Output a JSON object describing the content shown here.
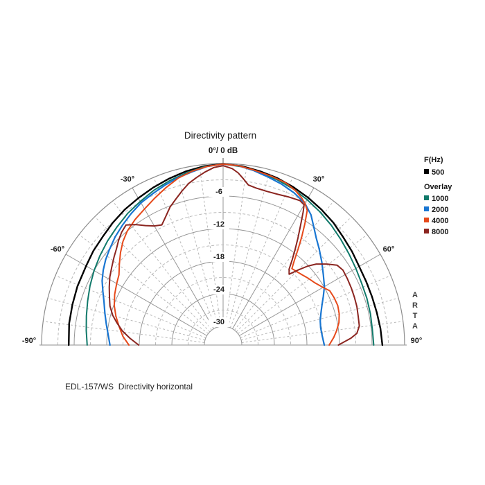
{
  "title": "Directivity pattern",
  "apex_label": "0°/ 0 dB",
  "watermark": "ARTA",
  "caption": "EDL-157/WS  Directivity horizontal",
  "legend": {
    "primary_header": "F(Hz)",
    "primary": [
      {
        "label": "500",
        "color": "#000000"
      }
    ],
    "overlay_header": "Overlay",
    "overlay": [
      {
        "label": "1000",
        "color": "#10796a"
      },
      {
        "label": "2000",
        "color": "#1976d2"
      },
      {
        "label": "4000",
        "color": "#e6491a"
      },
      {
        "label": "8000",
        "color": "#8b2520"
      }
    ]
  },
  "axis": {
    "angle_labels": [
      {
        "text": "-90°"
      },
      {
        "text": "-60°"
      },
      {
        "text": "-30°"
      },
      {
        "text": "30°"
      },
      {
        "text": "60°"
      },
      {
        "text": "90°"
      }
    ],
    "db_labels": [
      {
        "text": "-6"
      },
      {
        "text": "-12"
      },
      {
        "text": "-18"
      },
      {
        "text": "-24"
      },
      {
        "text": "-30"
      }
    ],
    "grid_solid_color": "#969696",
    "grid_dashed_color": "#b9b9b9",
    "outer_circle_color": "#8c8c8c",
    "baseline_color": "#a3a3a3"
  },
  "chart_data": {
    "type": "polar-directivity",
    "title": "Directivity pattern",
    "angle_range_deg": [
      -90,
      90
    ],
    "db_range": [
      0,
      -30
    ],
    "db_grid_solid_step": 6,
    "db_grid_dashed_step": 6,
    "angle_grid_solid_step_deg": 30,
    "angle_grid_dashed_step_deg": 7.5,
    "legend_position": "right",
    "series": [
      {
        "name": "500",
        "color": "#000000",
        "width": 2.4,
        "points": [
          [
            -90,
            -5.0
          ],
          [
            -82,
            -4.8
          ],
          [
            -75,
            -4.7
          ],
          [
            -68,
            -4.5
          ],
          [
            -60,
            -4.3
          ],
          [
            -54,
            -3.9
          ],
          [
            -48,
            -3.6
          ],
          [
            -42,
            -3.1
          ],
          [
            -36,
            -2.6
          ],
          [
            -30,
            -2.2
          ],
          [
            -24,
            -1.7
          ],
          [
            -18,
            -1.2
          ],
          [
            -12,
            -0.7
          ],
          [
            -6,
            -0.3
          ],
          [
            0,
            -0.05
          ],
          [
            6,
            -0.3
          ],
          [
            12,
            -0.7
          ],
          [
            18,
            -1.1
          ],
          [
            24,
            -1.6
          ],
          [
            30,
            -2.1
          ],
          [
            36,
            -2.6
          ],
          [
            42,
            -3.1
          ],
          [
            48,
            -3.7
          ],
          [
            54,
            -4.1
          ],
          [
            60,
            -4.5
          ],
          [
            66,
            -4.6
          ],
          [
            72,
            -4.6
          ],
          [
            78,
            -4.5
          ],
          [
            84,
            -4.3
          ],
          [
            90,
            -4.1
          ]
        ]
      },
      {
        "name": "1000",
        "color": "#10796a",
        "width": 2.0,
        "points": [
          [
            -90,
            -8.4
          ],
          [
            -84,
            -8.1
          ],
          [
            -78,
            -7.7
          ],
          [
            -72,
            -7.2
          ],
          [
            -66,
            -6.6
          ],
          [
            -60,
            -6.0
          ],
          [
            -54,
            -5.4
          ],
          [
            -48,
            -4.8
          ],
          [
            -42,
            -4.2
          ],
          [
            -36,
            -3.5
          ],
          [
            -30,
            -2.9
          ],
          [
            -24,
            -2.2
          ],
          [
            -18,
            -1.6
          ],
          [
            -12,
            -1.0
          ],
          [
            -6,
            -0.4
          ],
          [
            0,
            -0.1
          ],
          [
            6,
            -0.4
          ],
          [
            12,
            -0.9
          ],
          [
            18,
            -1.4
          ],
          [
            24,
            -1.9
          ],
          [
            30,
            -2.5
          ],
          [
            36,
            -3.1
          ],
          [
            42,
            -3.7
          ],
          [
            48,
            -4.3
          ],
          [
            54,
            -4.8
          ],
          [
            60,
            -5.2
          ],
          [
            66,
            -5.5
          ],
          [
            72,
            -5.6
          ],
          [
            78,
            -5.7
          ],
          [
            84,
            -5.8
          ],
          [
            90,
            -5.7
          ]
        ]
      },
      {
        "name": "2000",
        "color": "#1976d2",
        "width": 2.2,
        "points": [
          [
            -90,
            -12.6
          ],
          [
            -85,
            -12.2
          ],
          [
            -80,
            -11.6
          ],
          [
            -75,
            -10.9
          ],
          [
            -70,
            -10.1
          ],
          [
            -66,
            -9.2
          ],
          [
            -62,
            -8.2
          ],
          [
            -58,
            -7.4
          ],
          [
            -54,
            -6.7
          ],
          [
            -50,
            -6.1
          ],
          [
            -45,
            -5.3
          ],
          [
            -40,
            -4.6
          ],
          [
            -35,
            -3.9
          ],
          [
            -30,
            -3.2
          ],
          [
            -25,
            -2.7
          ],
          [
            -20,
            -2.1
          ],
          [
            -15,
            -1.5
          ],
          [
            -10,
            -1.0
          ],
          [
            -5,
            -0.4
          ],
          [
            0,
            -0.1
          ],
          [
            5,
            -0.3
          ],
          [
            10,
            -0.8
          ],
          [
            15,
            -1.4
          ],
          [
            20,
            -1.9
          ],
          [
            25,
            -2.5
          ],
          [
            30,
            -3.3
          ],
          [
            34,
            -4.5
          ],
          [
            38,
            -6.2
          ],
          [
            41,
            -7.3
          ],
          [
            45,
            -8.4
          ],
          [
            50,
            -9.7
          ],
          [
            55,
            -10.9
          ],
          [
            60,
            -11.9
          ],
          [
            64,
            -12.9
          ],
          [
            68,
            -13.8
          ],
          [
            72,
            -14.5
          ],
          [
            76,
            -15.0
          ],
          [
            80,
            -15.2
          ],
          [
            85,
            -15.1
          ],
          [
            90,
            -14.8
          ]
        ]
      },
      {
        "name": "4000",
        "color": "#e6491a",
        "width": 2.0,
        "points": [
          [
            -90,
            -16.1
          ],
          [
            -85,
            -14.9
          ],
          [
            -80,
            -14.0
          ],
          [
            -75,
            -13.0
          ],
          [
            -70,
            -12.1
          ],
          [
            -65,
            -11.4
          ],
          [
            -60,
            -10.8
          ],
          [
            -56,
            -10.3
          ],
          [
            -52,
            -9.2
          ],
          [
            -48,
            -8.0
          ],
          [
            -44,
            -6.9
          ],
          [
            -40,
            -6.0
          ],
          [
            -35,
            -5.2
          ],
          [
            -30,
            -4.5
          ],
          [
            -25,
            -3.6
          ],
          [
            -20,
            -2.6
          ],
          [
            -15,
            -1.6
          ],
          [
            -10,
            -0.9
          ],
          [
            -5,
            -0.4
          ],
          [
            0,
            -0.1
          ],
          [
            5,
            -0.3
          ],
          [
            10,
            -0.7
          ],
          [
            16,
            -1.1
          ],
          [
            21,
            -1.4
          ],
          [
            25,
            -2.0
          ],
          [
            28,
            -2.7
          ],
          [
            30,
            -3.3
          ],
          [
            32,
            -4.2
          ],
          [
            34,
            -6.5
          ],
          [
            36,
            -8.8
          ],
          [
            38,
            -11.0
          ],
          [
            40,
            -13.0
          ],
          [
            42,
            -14.5
          ],
          [
            45,
            -14.3
          ],
          [
            48,
            -14.0
          ],
          [
            52,
            -13.5
          ],
          [
            56,
            -13.0
          ],
          [
            60,
            -12.2
          ],
          [
            63,
            -11.4
          ],
          [
            67,
            -11.2
          ],
          [
            71,
            -11.1
          ],
          [
            75,
            -11.3
          ],
          [
            79,
            -11.7
          ],
          [
            83,
            -12.4
          ],
          [
            86,
            -13.0
          ],
          [
            90,
            -13.9
          ]
        ]
      },
      {
        "name": "8000",
        "color": "#8b2520",
        "width": 2.0,
        "points": [
          [
            -90,
            -17.9
          ],
          [
            -86,
            -16.3
          ],
          [
            -82,
            -14.7
          ],
          [
            -78,
            -13.4
          ],
          [
            -75,
            -12.4
          ],
          [
            -71,
            -11.4
          ],
          [
            -67,
            -10.7
          ],
          [
            -63,
            -9.9
          ],
          [
            -59,
            -9.1
          ],
          [
            -55,
            -8.4
          ],
          [
            -51,
            -7.6
          ],
          [
            -48,
            -7.0
          ],
          [
            -45,
            -6.2
          ],
          [
            -42,
            -5.5
          ],
          [
            -39,
            -5.0
          ],
          [
            -36,
            -6.0
          ],
          [
            -33,
            -7.2
          ],
          [
            -30,
            -8.1
          ],
          [
            -27,
            -8.6
          ],
          [
            -24,
            -7.5
          ],
          [
            -21,
            -6.2
          ],
          [
            -18,
            -5.2
          ],
          [
            -15,
            -4.1
          ],
          [
            -12,
            -3.0
          ],
          [
            -9,
            -2.2
          ],
          [
            -6,
            -1.4
          ],
          [
            -3,
            -0.7
          ],
          [
            0,
            -0.4
          ],
          [
            3,
            -0.9
          ],
          [
            5,
            -1.6
          ],
          [
            7,
            -2.6
          ],
          [
            9,
            -3.6
          ],
          [
            12,
            -3.9
          ],
          [
            16,
            -4.0
          ],
          [
            20,
            -3.9
          ],
          [
            24,
            -3.6
          ],
          [
            28,
            -3.3
          ],
          [
            30,
            -3.6
          ],
          [
            31,
            -4.8
          ],
          [
            33,
            -7.3
          ],
          [
            35,
            -9.4
          ],
          [
            37,
            -11.4
          ],
          [
            39,
            -13.2
          ],
          [
            41,
            -14.9
          ],
          [
            43,
            -15.6
          ],
          [
            45,
            -13.9
          ],
          [
            47,
            -12.1
          ],
          [
            49,
            -10.7
          ],
          [
            52,
            -9.2
          ],
          [
            55,
            -7.8
          ],
          [
            58,
            -7.4
          ],
          [
            62,
            -7.5
          ],
          [
            66,
            -7.6
          ],
          [
            70,
            -7.7
          ],
          [
            74,
            -7.8
          ],
          [
            78,
            -8.0
          ],
          [
            82,
            -8.1
          ],
          [
            85,
            -8.7
          ],
          [
            87,
            -9.9
          ],
          [
            90,
            -12.2
          ]
        ]
      }
    ]
  }
}
